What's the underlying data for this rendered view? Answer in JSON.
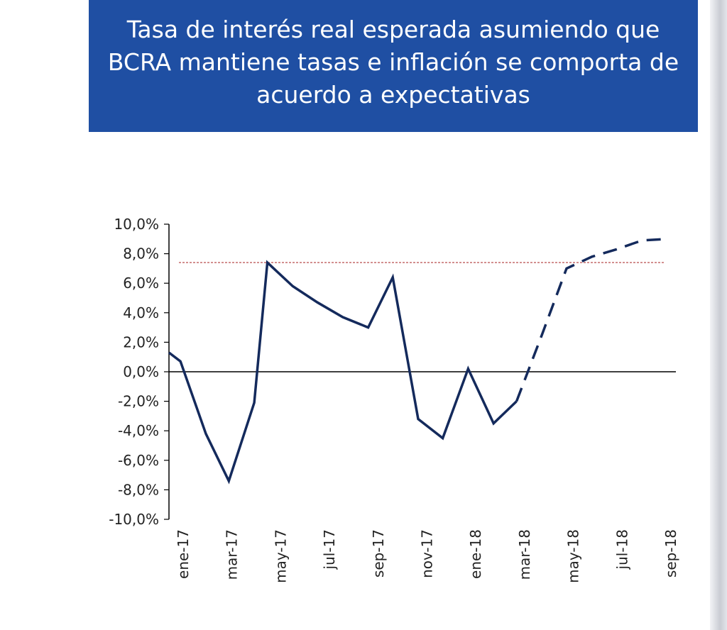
{
  "colors": {
    "title_background": "#1f4fa3",
    "title_text": "#ffffff",
    "series_line": "#142a5c",
    "reference_line": "#b03a3a",
    "zero_line": "#000000"
  },
  "chart_data": {
    "type": "line",
    "title": "Tasa de interés real esperada asumiendo que BCRA mantiene tasas e inflación se comporta de acuerdo a expectativas",
    "xlabel": "",
    "ylabel": "",
    "ylim": [
      -10,
      10
    ],
    "y_ticks": [
      10,
      8,
      6,
      4,
      2,
      0,
      -2,
      -4,
      -6,
      -8,
      -10
    ],
    "y_tick_labels": [
      "10,0%",
      "8,0%",
      "6,0%",
      "4,0%",
      "2,0%",
      "0,0%",
      "-2,0%",
      "-4,0%",
      "-6,0%",
      "-8,0%",
      "-10,0%"
    ],
    "x_tick_labels": [
      "ene-17",
      "mar-17",
      "may-17",
      "jul-17",
      "sep-17",
      "nov-17",
      "ene-18",
      "mar-18",
      "may-18",
      "jul-18",
      "sep-18"
    ],
    "x_dates": [
      "2017-01-01",
      "2017-01-15",
      "2017-02-15",
      "2017-03-15",
      "2017-04-15",
      "2017-05-01",
      "2017-06-01",
      "2017-07-01",
      "2017-08-01",
      "2017-09-01",
      "2017-10-01",
      "2017-11-01",
      "2017-12-01",
      "2018-01-01",
      "2018-02-01",
      "2018-03-01",
      "2018-04-01",
      "2018-05-01",
      "2018-06-01",
      "2018-07-01",
      "2018-08-01",
      "2018-09-01"
    ],
    "series": [
      {
        "style": "solid",
        "x": [
          "2017-01-01",
          "2017-01-15",
          "2017-02-15",
          "2017-03-15",
          "2017-04-15",
          "2017-05-01",
          "2017-06-01",
          "2017-07-01",
          "2017-08-01",
          "2017-09-01",
          "2017-10-01",
          "2017-11-01",
          "2017-12-01",
          "2018-01-01",
          "2018-02-01",
          "2018-03-01"
        ],
        "values": [
          1.3,
          0.7,
          -4.2,
          -7.4,
          -2.1,
          7.4,
          5.8,
          4.7,
          3.7,
          3.0,
          6.4,
          -3.2,
          -4.5,
          0.2,
          -3.5,
          -2.0
        ]
      },
      {
        "style": "dashed",
        "x": [
          "2018-03-01",
          "2018-04-01",
          "2018-05-01",
          "2018-06-01",
          "2018-07-01",
          "2018-08-01",
          "2018-09-01"
        ],
        "values": [
          -2.0,
          2.5,
          7.0,
          7.8,
          8.3,
          8.9,
          9.0
        ]
      }
    ],
    "reference_line": {
      "value": 7.4,
      "style": "dashed"
    },
    "grid": false,
    "legend": "none"
  }
}
